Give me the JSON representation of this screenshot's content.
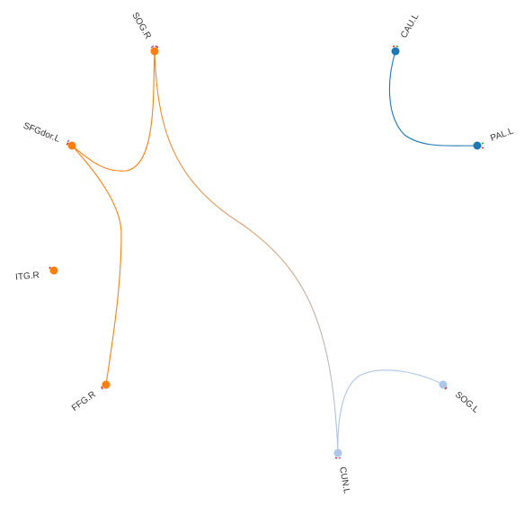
{
  "diagram": {
    "type": "circular-connectome",
    "colors": {
      "orange": "#ff7f0e",
      "blue": "#1f77b4",
      "light_blue": "#aec7e8",
      "marker_pink": "#d62728",
      "marker_purple": "#9467bd",
      "marker_green": "#2ca02c"
    },
    "nodes": [
      {
        "id": "SOG.R",
        "label": "SOG.R",
        "group": "orange"
      },
      {
        "id": "SFGdor.L",
        "label": "SFGdor.L",
        "group": "orange"
      },
      {
        "id": "ITG.R",
        "label": "ITG.R",
        "group": "orange"
      },
      {
        "id": "FFG.R",
        "label": "FFG.R",
        "group": "orange"
      },
      {
        "id": "CUN.L",
        "label": "CUN.L",
        "group": "light_blue"
      },
      {
        "id": "SOG.L",
        "label": "SOG.L",
        "group": "light_blue"
      },
      {
        "id": "PAL.L",
        "label": "PAL.L",
        "group": "blue"
      },
      {
        "id": "CAU.L",
        "label": "CAU.L",
        "group": "blue"
      }
    ],
    "edges": [
      {
        "source": "SOG.R",
        "target": "SFGdor.L",
        "color": "orange"
      },
      {
        "source": "SFGdor.L",
        "target": "FFG.R",
        "color": "orange"
      },
      {
        "source": "SOG.R",
        "target": "CUN.L",
        "color": "gradient"
      },
      {
        "source": "CUN.L",
        "target": "SOG.L",
        "color": "light_blue"
      },
      {
        "source": "CAU.L",
        "target": "PAL.L",
        "color": "blue"
      }
    ]
  }
}
